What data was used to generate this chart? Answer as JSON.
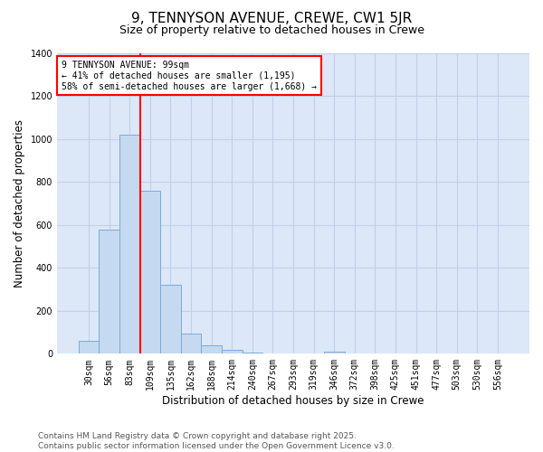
{
  "title": "9, TENNYSON AVENUE, CREWE, CW1 5JR",
  "subtitle": "Size of property relative to detached houses in Crewe",
  "xlabel": "Distribution of detached houses by size in Crewe",
  "ylabel": "Number of detached properties",
  "categories": [
    "30sqm",
    "56sqm",
    "83sqm",
    "109sqm",
    "135sqm",
    "162sqm",
    "188sqm",
    "214sqm",
    "240sqm",
    "267sqm",
    "293sqm",
    "319sqm",
    "346sqm",
    "372sqm",
    "398sqm",
    "425sqm",
    "451sqm",
    "477sqm",
    "503sqm",
    "530sqm",
    "556sqm"
  ],
  "values": [
    60,
    580,
    1020,
    760,
    320,
    95,
    40,
    20,
    7,
    2,
    0,
    0,
    8,
    0,
    0,
    0,
    0,
    0,
    0,
    0,
    0
  ],
  "bar_color": "#c5d9f0",
  "bar_edge_color": "#7aaadb",
  "bar_edge_width": 0.7,
  "red_line_x": 2.5,
  "annotation_line1": "9 TENNYSON AVENUE: 99sqm",
  "annotation_line2": "← 41% of detached houses are smaller (1,195)",
  "annotation_line3": "58% of semi-detached houses are larger (1,668) →",
  "annotation_box_color": "white",
  "annotation_box_edge": "red",
  "red_line_color": "red",
  "ylim": [
    0,
    1400
  ],
  "yticks": [
    0,
    200,
    400,
    600,
    800,
    1000,
    1200,
    1400
  ],
  "background_color": "#dce8f8",
  "grid_color": "#c0d0e8",
  "footer_line1": "Contains HM Land Registry data © Crown copyright and database right 2025.",
  "footer_line2": "Contains public sector information licensed under the Open Government Licence v3.0.",
  "title_fontsize": 11,
  "subtitle_fontsize": 9,
  "axis_label_fontsize": 8.5,
  "tick_fontsize": 7,
  "annotation_fontsize": 7,
  "footer_fontsize": 6.5
}
